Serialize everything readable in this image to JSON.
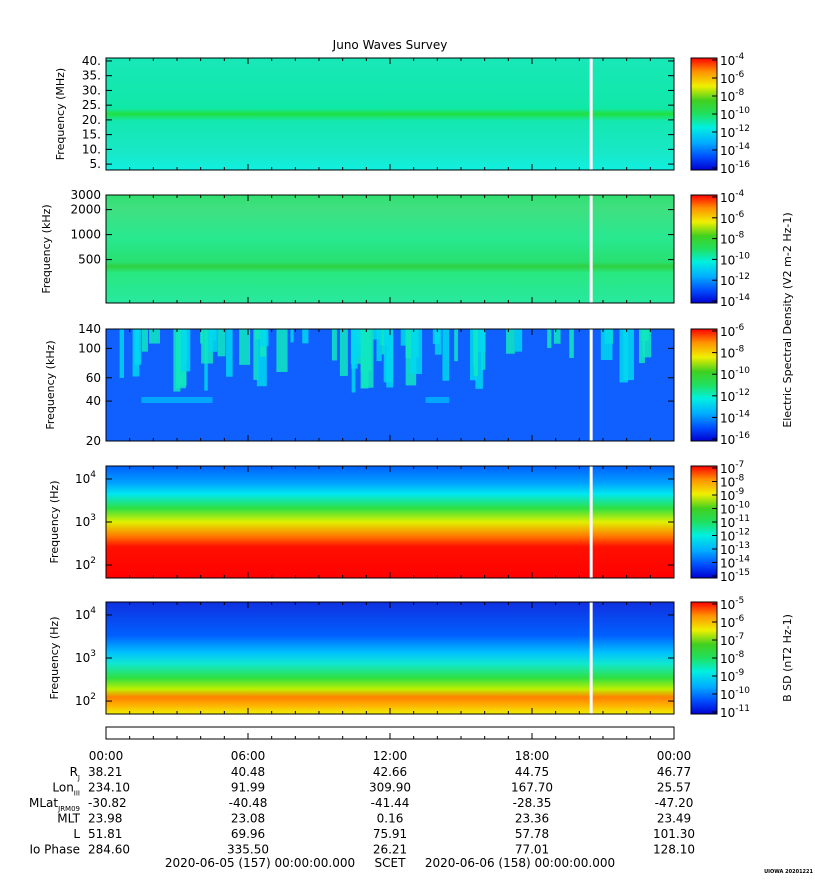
{
  "chart_data": {
    "title": "Juno Waves Survey",
    "type": "heatmap",
    "panels": [
      {
        "ylabel": "Frequency (MHz)",
        "yticks": [
          "40.",
          "35.",
          "30.",
          "25.",
          "20.",
          "15.",
          "10.",
          "5."
        ],
        "ytick_values": [
          40,
          35,
          30,
          25,
          20,
          15,
          10,
          5
        ],
        "ylim": [
          3,
          41
        ],
        "yscale": "linear",
        "colorbar": {
          "ticks": [
            "-4",
            "-6",
            "-8",
            "-10",
            "-12",
            "-14",
            "-16"
          ],
          "label": ""
        }
      },
      {
        "ylabel": "Frequency (kHz)",
        "yticks": [
          "3000",
          "2000",
          "1000",
          "500"
        ],
        "ytick_values": [
          3000,
          2000,
          1000,
          500
        ],
        "ylim": [
          150,
          3000
        ],
        "yscale": "log",
        "colorbar": {
          "ticks": [
            "-4",
            "-6",
            "-8",
            "-10",
            "-12",
            "-14"
          ],
          "label": "Electric Spectral Density (V2 m-2 Hz-1)"
        }
      },
      {
        "ylabel": "Frequency (kHz)",
        "yticks": [
          "140",
          "100",
          "60",
          "40",
          "20"
        ],
        "ytick_values": [
          140,
          100,
          60,
          40,
          20
        ],
        "ylim": [
          20,
          140
        ],
        "yscale": "log",
        "colorbar": {
          "ticks": [
            "-6",
            "-8",
            "-10",
            "-12",
            "-14",
            "-16"
          ],
          "label": ""
        }
      },
      {
        "ylabel": "Frequency (Hz)",
        "yticks": [
          "4",
          "3",
          "2"
        ],
        "ytick_values": [
          10000,
          1000,
          100
        ],
        "ylim": [
          50,
          20000
        ],
        "yscale": "log",
        "colorbar": {
          "ticks": [
            "-7",
            "-8",
            "-9",
            "-10",
            "-11",
            "-12",
            "-13",
            "-14",
            "-15"
          ],
          "label": ""
        }
      },
      {
        "ylabel": "Frequency (Hz)",
        "yticks": [
          "4",
          "3",
          "2"
        ],
        "ytick_values": [
          10000,
          1000,
          100
        ],
        "ylim": [
          50,
          20000
        ],
        "yscale": "log",
        "colorbar": {
          "ticks": [
            "-5",
            "-6",
            "-7",
            "-8",
            "-9",
            "-10",
            "-11"
          ],
          "label": "B SD (nT2 Hz-1)"
        }
      }
    ],
    "x_ticks": [
      "00:00",
      "06:00",
      "12:00",
      "18:00",
      "00:00"
    ],
    "x_tick_hours": [
      0,
      6,
      12,
      18,
      24
    ],
    "data_gap_hour": 20.5,
    "ephemeris": [
      {
        "label": "R",
        "sub": "J",
        "values": [
          "38.21",
          "40.48",
          "42.66",
          "44.75",
          "46.77"
        ]
      },
      {
        "label": "Lon",
        "sub": "III",
        "values": [
          "234.10",
          "91.99",
          "309.90",
          "167.70",
          "25.57"
        ]
      },
      {
        "label": "MLat",
        "sub": "JRM09",
        "values": [
          "-30.82",
          "-40.48",
          "-41.44",
          "-28.35",
          "-47.20"
        ]
      },
      {
        "label": "MLT",
        "sub": "",
        "values": [
          "23.98",
          "23.08",
          "0.16",
          "23.36",
          "23.49"
        ]
      },
      {
        "label": "L",
        "sub": "",
        "values": [
          "51.81",
          "69.96",
          "75.91",
          "57.78",
          "101.30"
        ]
      },
      {
        "label": "Io Phase",
        "sub": "",
        "values": [
          "284.60",
          "335.50",
          "26.21",
          "77.01",
          "128.10"
        ]
      }
    ],
    "scet_start": "2020-06-05 (157) 00:00:00.000",
    "scet_label": "SCET",
    "scet_end": "2020-06-06 (158) 00:00:00.000",
    "credit": "UIOWA 20201221"
  }
}
